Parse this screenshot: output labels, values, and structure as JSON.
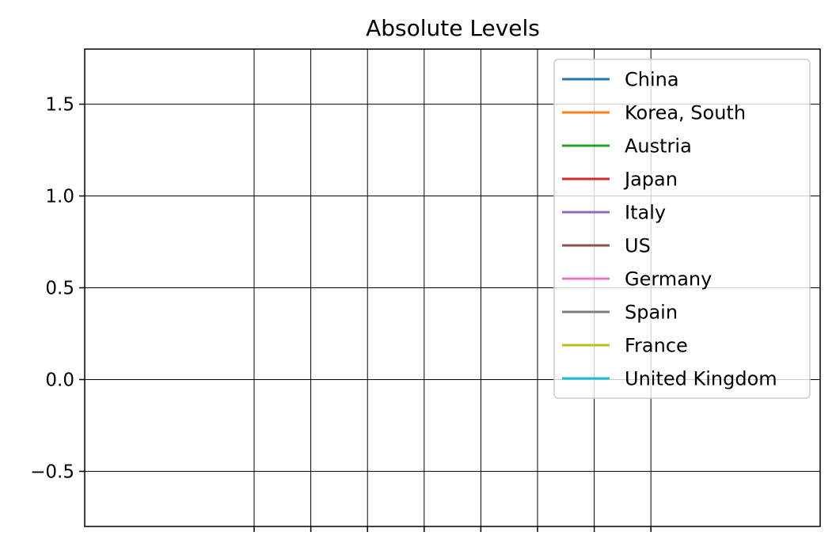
{
  "chart_data": {
    "type": "line",
    "title": "Absolute Levels",
    "xlabel": "",
    "ylabel": "",
    "ylim": [
      -0.8,
      1.8
    ],
    "yticks": [
      -0.5,
      0.0,
      0.5,
      1.0,
      1.5
    ],
    "ytick_labels": [
      "−0.5",
      "0.0",
      "0.5",
      "1.0",
      "1.5"
    ],
    "x_tick_count": 8,
    "x_tick_labels": [
      "",
      "",
      "",
      "",
      "",
      "",
      "",
      ""
    ],
    "grid": true,
    "legend_position": "upper-right",
    "series": [
      {
        "name": "China",
        "color": "#1f77b4",
        "values": []
      },
      {
        "name": "Korea, South",
        "color": "#ff7f0e",
        "values": []
      },
      {
        "name": "Austria",
        "color": "#2ca02c",
        "values": []
      },
      {
        "name": "Japan",
        "color": "#d62728",
        "values": []
      },
      {
        "name": "Italy",
        "color": "#9467bd",
        "values": []
      },
      {
        "name": "US",
        "color": "#8c564b",
        "values": []
      },
      {
        "name": "Germany",
        "color": "#e377c2",
        "values": []
      },
      {
        "name": "Spain",
        "color": "#7f7f7f",
        "values": []
      },
      {
        "name": "France",
        "color": "#bcbd22",
        "values": []
      },
      {
        "name": "United Kingdom",
        "color": "#17becf",
        "values": []
      }
    ]
  }
}
